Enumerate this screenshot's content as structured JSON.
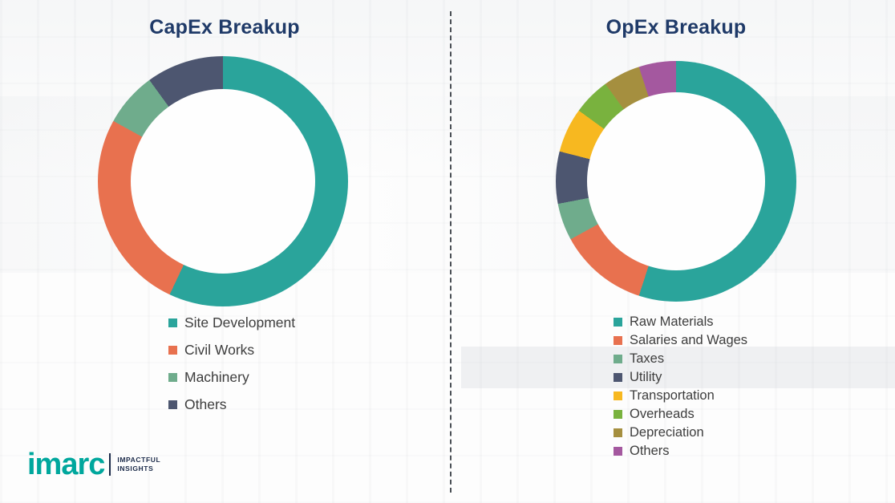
{
  "brand": {
    "logo_text": "imarc",
    "tagline_line1": "IMPACTFUL",
    "tagline_line2": "INSIGHTS",
    "accent_color": "#00a79d"
  },
  "chart_data": [
    {
      "type": "pie",
      "donut": true,
      "title": "CapEx Breakup",
      "legend_position": "below",
      "segments": [
        {
          "label": "Site Development",
          "value": 57,
          "color": "#2aa49b"
        },
        {
          "label": "Civil Works",
          "value": 26,
          "color": "#e8714f"
        },
        {
          "label": "Machinery",
          "value": 7,
          "color": "#6fac8c"
        },
        {
          "label": "Others",
          "value": 10,
          "color": "#4d5670"
        }
      ]
    },
    {
      "type": "pie",
      "donut": true,
      "title": "OpEx Breakup",
      "legend_position": "below",
      "segments": [
        {
          "label": "Raw Materials",
          "value": 55,
          "color": "#2aa49b"
        },
        {
          "label": "Salaries and Wages",
          "value": 12,
          "color": "#e8714f"
        },
        {
          "label": "Taxes",
          "value": 5,
          "color": "#6fac8c"
        },
        {
          "label": "Utility",
          "value": 7,
          "color": "#4d5670"
        },
        {
          "label": "Transportation",
          "value": 6,
          "color": "#f7b820"
        },
        {
          "label": "Overheads",
          "value": 5,
          "color": "#79b23e"
        },
        {
          "label": "Depreciation",
          "value": 5,
          "color": "#a58f3f"
        },
        {
          "label": "Others",
          "value": 5,
          "color": "#a4589f"
        }
      ]
    }
  ]
}
